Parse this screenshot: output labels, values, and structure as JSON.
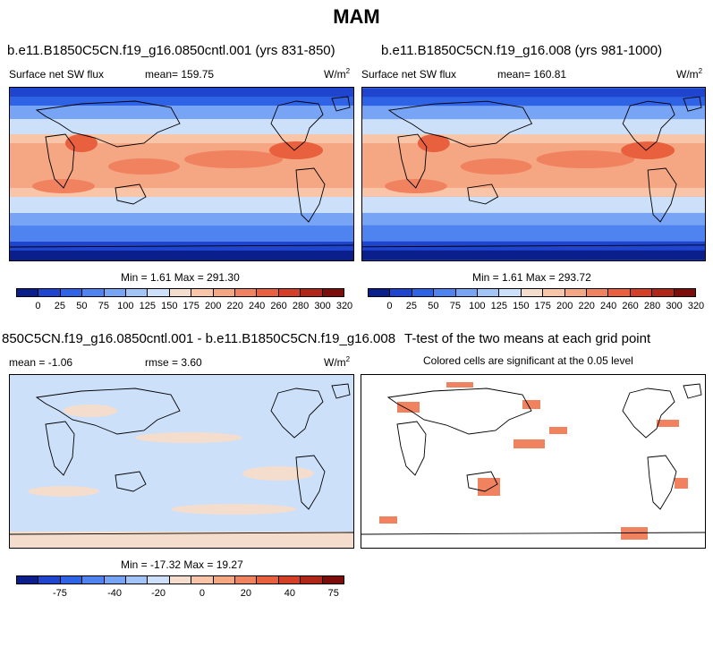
{
  "title": "MAM",
  "panels": [
    {
      "title": "b.e11.B1850C5CN.f19_g16.0850cntl.001 (yrs 831-850)",
      "left_label": "Surface net SW flux",
      "mean_label": "mean= 159.75",
      "units": "W/m",
      "units_sup": "2",
      "minmax": "Min =   1.61 Max = 291.30"
    },
    {
      "title": "b.e11.B1850C5CN.f19_g16.008 (yrs 981-1000)",
      "left_label": "Surface net SW flux",
      "mean_label": "mean= 160.81",
      "units": "W/m",
      "units_sup": "2",
      "minmax": "Min =   1.61 Max = 293.72"
    },
    {
      "title": "850C5CN.f19_g16.0850cntl.001 - b.e11.B1850C5CN.f19_g16.008",
      "left_label": "mean =  -1.06",
      "mean_label": "rmse =   3.60",
      "units": "W/m",
      "units_sup": "2",
      "minmax": "Min = -17.32 Max =  19.27"
    },
    {
      "title": "T-test of the two means at each grid point",
      "subtitle": "Colored cells are significant at the 0.05 level"
    }
  ],
  "colorbar_abs": {
    "colors": [
      "#0a1f8c",
      "#1f45cf",
      "#2f63e6",
      "#4e83f0",
      "#78a4f5",
      "#a3c4f7",
      "#cde0fa",
      "#f5ddcd",
      "#f8c5a8",
      "#f5a683",
      "#f0825f",
      "#e8603d",
      "#d34027",
      "#b02618",
      "#7d0d0a"
    ],
    "labels": [
      "0",
      "25",
      "50",
      "75",
      "100",
      "125",
      "150",
      "175",
      "200",
      "220",
      "240",
      "260",
      "280",
      "300",
      "320"
    ]
  },
  "colorbar_diff": {
    "colors": [
      "#0a1f8c",
      "#1f45cf",
      "#2f63e6",
      "#4e83f0",
      "#78a4f5",
      "#a3c4f7",
      "#cde0fa",
      "#f5ddcd",
      "#f8c5a8",
      "#f5a683",
      "#f0825f",
      "#e8603d",
      "#d34027",
      "#b02618",
      "#7d0d0a"
    ],
    "labels": [
      "-75",
      "-40",
      "-20",
      "0",
      "20",
      "40",
      "75"
    ]
  },
  "chart_data": [
    {
      "type": "heatmap",
      "title": "b.e11.B1850C5CN.f19_g16.0850cntl.001 (yrs 831-850)",
      "variable": "Surface net SW flux",
      "units": "W/m2",
      "mean": 159.75,
      "min": 1.61,
      "max": 291.3,
      "levels": [
        0,
        25,
        50,
        75,
        100,
        125,
        150,
        175,
        200,
        220,
        240,
        260,
        280,
        300,
        320
      ]
    },
    {
      "type": "heatmap",
      "title": "b.e11.B1850C5CN.f19_g16.008 (yrs 981-1000)",
      "variable": "Surface net SW flux",
      "units": "W/m2",
      "mean": 160.81,
      "min": 1.61,
      "max": 293.72,
      "levels": [
        0,
        25,
        50,
        75,
        100,
        125,
        150,
        175,
        200,
        220,
        240,
        260,
        280,
        300,
        320
      ]
    },
    {
      "type": "heatmap",
      "title": "850C5CN.f19_g16.0850cntl.001 - b.e11.B1850C5CN.f19_g16.008",
      "units": "W/m2",
      "mean": -1.06,
      "rmse": 3.6,
      "min": -17.32,
      "max": 19.27,
      "levels": [
        -75,
        -40,
        -20,
        0,
        20,
        40,
        75
      ]
    },
    {
      "type": "heatmap",
      "title": "T-test of the two means at each grid point",
      "subtitle": "Colored cells are significant at the 0.05 level",
      "significance_level": 0.05
    }
  ]
}
